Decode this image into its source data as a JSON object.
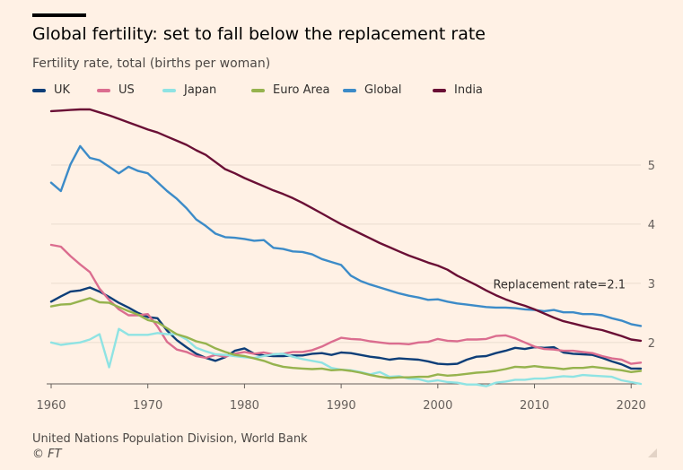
{
  "header": {
    "title": "Global fertility: set to fall below the replacement rate",
    "subtitle": "Fertility rate, total (births per woman)"
  },
  "footer": {
    "source": "United Nations Population Division, World Bank",
    "copyright": "© FT"
  },
  "chart_data": {
    "type": "line",
    "title": "Global fertility: set to fall below the replacement rate",
    "subtitle": "Fertility rate, total (births per woman)",
    "xlabel": "",
    "ylabel": "",
    "xlim": [
      1960,
      2021
    ],
    "ylim": [
      1.3,
      6
    ],
    "x_ticks": [
      "1960",
      "1970",
      "1980",
      "1990",
      "2000",
      "2010",
      "2020"
    ],
    "y_ticks": [
      "2",
      "3",
      "4",
      "5"
    ],
    "y_axis_side": "right",
    "grid": true,
    "legend_position": "top",
    "annotation": {
      "text": "Replacement rate=2.1",
      "x": 2010,
      "y": 2.1
    },
    "x": [
      1960,
      1961,
      1962,
      1963,
      1964,
      1965,
      1966,
      1967,
      1968,
      1969,
      1970,
      1971,
      1972,
      1973,
      1974,
      1975,
      1976,
      1977,
      1978,
      1979,
      1980,
      1981,
      1982,
      1983,
      1984,
      1985,
      1986,
      1987,
      1988,
      1989,
      1990,
      1991,
      1992,
      1993,
      1994,
      1995,
      1996,
      1997,
      1998,
      1999,
      2000,
      2001,
      2002,
      2003,
      2004,
      2005,
      2006,
      2007,
      2008,
      2009,
      2010,
      2011,
      2012,
      2013,
      2014,
      2015,
      2016,
      2017,
      2018,
      2019,
      2020,
      2021
    ],
    "series": [
      {
        "name": "UK",
        "color": "#0d3e78",
        "values": [
          2.69,
          2.78,
          2.86,
          2.88,
          2.93,
          2.86,
          2.77,
          2.67,
          2.59,
          2.5,
          2.43,
          2.41,
          2.2,
          2.04,
          1.92,
          1.81,
          1.74,
          1.69,
          1.75,
          1.86,
          1.9,
          1.81,
          1.78,
          1.77,
          1.77,
          1.78,
          1.78,
          1.81,
          1.82,
          1.79,
          1.83,
          1.82,
          1.79,
          1.76,
          1.74,
          1.71,
          1.73,
          1.72,
          1.71,
          1.68,
          1.64,
          1.63,
          1.64,
          1.71,
          1.76,
          1.77,
          1.82,
          1.86,
          1.91,
          1.89,
          1.92,
          1.91,
          1.92,
          1.83,
          1.81,
          1.8,
          1.79,
          1.74,
          1.68,
          1.63,
          1.56,
          1.56
        ]
      },
      {
        "name": "US",
        "color": "#db6d8f",
        "values": [
          3.65,
          3.62,
          3.46,
          3.32,
          3.19,
          2.91,
          2.72,
          2.56,
          2.46,
          2.46,
          2.48,
          2.27,
          2.01,
          1.88,
          1.84,
          1.77,
          1.74,
          1.79,
          1.76,
          1.81,
          1.84,
          1.81,
          1.83,
          1.8,
          1.81,
          1.84,
          1.84,
          1.87,
          1.93,
          2.01,
          2.08,
          2.06,
          2.05,
          2.02,
          2.0,
          1.98,
          1.98,
          1.97,
          2.0,
          2.01,
          2.06,
          2.03,
          2.02,
          2.05,
          2.05,
          2.06,
          2.11,
          2.12,
          2.07,
          2.0,
          1.93,
          1.89,
          1.88,
          1.86,
          1.86,
          1.84,
          1.82,
          1.77,
          1.73,
          1.71,
          1.64,
          1.66
        ]
      },
      {
        "name": "Japan",
        "color": "#8fe3e3",
        "values": [
          2.0,
          1.96,
          1.98,
          2.0,
          2.05,
          2.14,
          1.58,
          2.23,
          2.13,
          2.13,
          2.13,
          2.16,
          2.14,
          2.14,
          2.05,
          1.91,
          1.85,
          1.8,
          1.79,
          1.77,
          1.75,
          1.74,
          1.77,
          1.8,
          1.81,
          1.76,
          1.72,
          1.69,
          1.66,
          1.57,
          1.54,
          1.53,
          1.5,
          1.46,
          1.5,
          1.42,
          1.43,
          1.39,
          1.38,
          1.34,
          1.36,
          1.33,
          1.32,
          1.29,
          1.29,
          1.26,
          1.32,
          1.34,
          1.37,
          1.37,
          1.39,
          1.39,
          1.41,
          1.43,
          1.42,
          1.45,
          1.44,
          1.43,
          1.42,
          1.36,
          1.33,
          1.3
        ]
      },
      {
        "name": "Euro Area",
        "color": "#96b34e",
        "values": [
          2.61,
          2.64,
          2.65,
          2.7,
          2.75,
          2.68,
          2.67,
          2.6,
          2.53,
          2.47,
          2.38,
          2.34,
          2.24,
          2.14,
          2.09,
          2.02,
          1.98,
          1.9,
          1.84,
          1.79,
          1.77,
          1.73,
          1.69,
          1.63,
          1.59,
          1.57,
          1.56,
          1.55,
          1.56,
          1.53,
          1.54,
          1.52,
          1.49,
          1.45,
          1.42,
          1.4,
          1.41,
          1.41,
          1.42,
          1.42,
          1.46,
          1.44,
          1.45,
          1.47,
          1.49,
          1.5,
          1.52,
          1.55,
          1.59,
          1.58,
          1.6,
          1.58,
          1.57,
          1.55,
          1.57,
          1.57,
          1.59,
          1.57,
          1.55,
          1.53,
          1.5,
          1.52
        ]
      },
      {
        "name": "Global",
        "color": "#3c8bc8",
        "values": [
          4.7,
          4.56,
          5.01,
          5.32,
          5.12,
          5.08,
          4.97,
          4.86,
          4.97,
          4.9,
          4.86,
          4.71,
          4.56,
          4.43,
          4.27,
          4.08,
          3.97,
          3.84,
          3.78,
          3.77,
          3.75,
          3.72,
          3.73,
          3.6,
          3.58,
          3.54,
          3.53,
          3.49,
          3.41,
          3.36,
          3.31,
          3.13,
          3.04,
          2.98,
          2.93,
          2.88,
          2.83,
          2.79,
          2.76,
          2.72,
          2.73,
          2.69,
          2.66,
          2.64,
          2.62,
          2.6,
          2.59,
          2.59,
          2.58,
          2.56,
          2.55,
          2.53,
          2.55,
          2.51,
          2.51,
          2.48,
          2.48,
          2.46,
          2.41,
          2.37,
          2.31,
          2.28
        ]
      },
      {
        "name": "India",
        "color": "#6a0f35",
        "values": [
          5.91,
          5.92,
          5.93,
          5.94,
          5.94,
          5.89,
          5.84,
          5.78,
          5.72,
          5.66,
          5.6,
          5.55,
          5.48,
          5.41,
          5.34,
          5.25,
          5.17,
          5.05,
          4.93,
          4.86,
          4.78,
          4.71,
          4.64,
          4.57,
          4.51,
          4.44,
          4.36,
          4.27,
          4.18,
          4.09,
          4.0,
          3.92,
          3.84,
          3.76,
          3.68,
          3.61,
          3.54,
          3.47,
          3.41,
          3.35,
          3.3,
          3.23,
          3.13,
          3.05,
          2.97,
          2.88,
          2.8,
          2.73,
          2.67,
          2.62,
          2.56,
          2.49,
          2.42,
          2.36,
          2.32,
          2.28,
          2.24,
          2.21,
          2.16,
          2.11,
          2.05,
          2.03
        ]
      }
    ]
  }
}
